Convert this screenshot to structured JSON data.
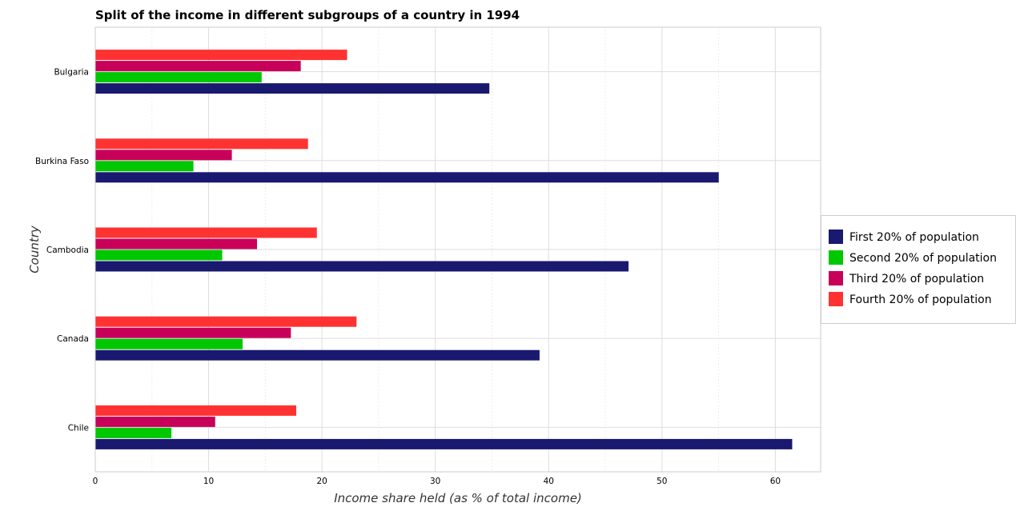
{
  "chart_data": {
    "type": "bar",
    "orientation": "horizontal",
    "title": "Split of the income in different subgroups of a country in 1994",
    "xlabel": "Income share held (as % of total income)",
    "ylabel": "Country",
    "xlim": [
      0,
      64
    ],
    "xticks": [
      0,
      10,
      20,
      30,
      40,
      50,
      60
    ],
    "xtick_labels": [
      "0",
      "10",
      "20",
      "30",
      "40",
      "50",
      "60"
    ],
    "grid": true,
    "legend_position": "right",
    "categories": [
      "Bulgaria",
      "Burkina Faso",
      "Cambodia",
      "Canada",
      "Chile"
    ],
    "series": [
      {
        "name": "First 20% of population",
        "color": "#191970",
        "values": [
          34.77,
          55.01,
          47.05,
          39.2,
          61.49
        ]
      },
      {
        "name": "Second 20% of population",
        "color": "#00c800",
        "values": [
          14.68,
          8.66,
          11.2,
          13.0,
          6.72
        ]
      },
      {
        "name": "Third 20% of population",
        "color": "#c8005a",
        "values": [
          18.13,
          12.05,
          14.27,
          17.26,
          10.58
        ]
      },
      {
        "name": "Fourth 20% of population",
        "color": "#ff3232",
        "values": [
          22.22,
          18.77,
          19.55,
          23.05,
          17.73
        ]
      }
    ]
  }
}
